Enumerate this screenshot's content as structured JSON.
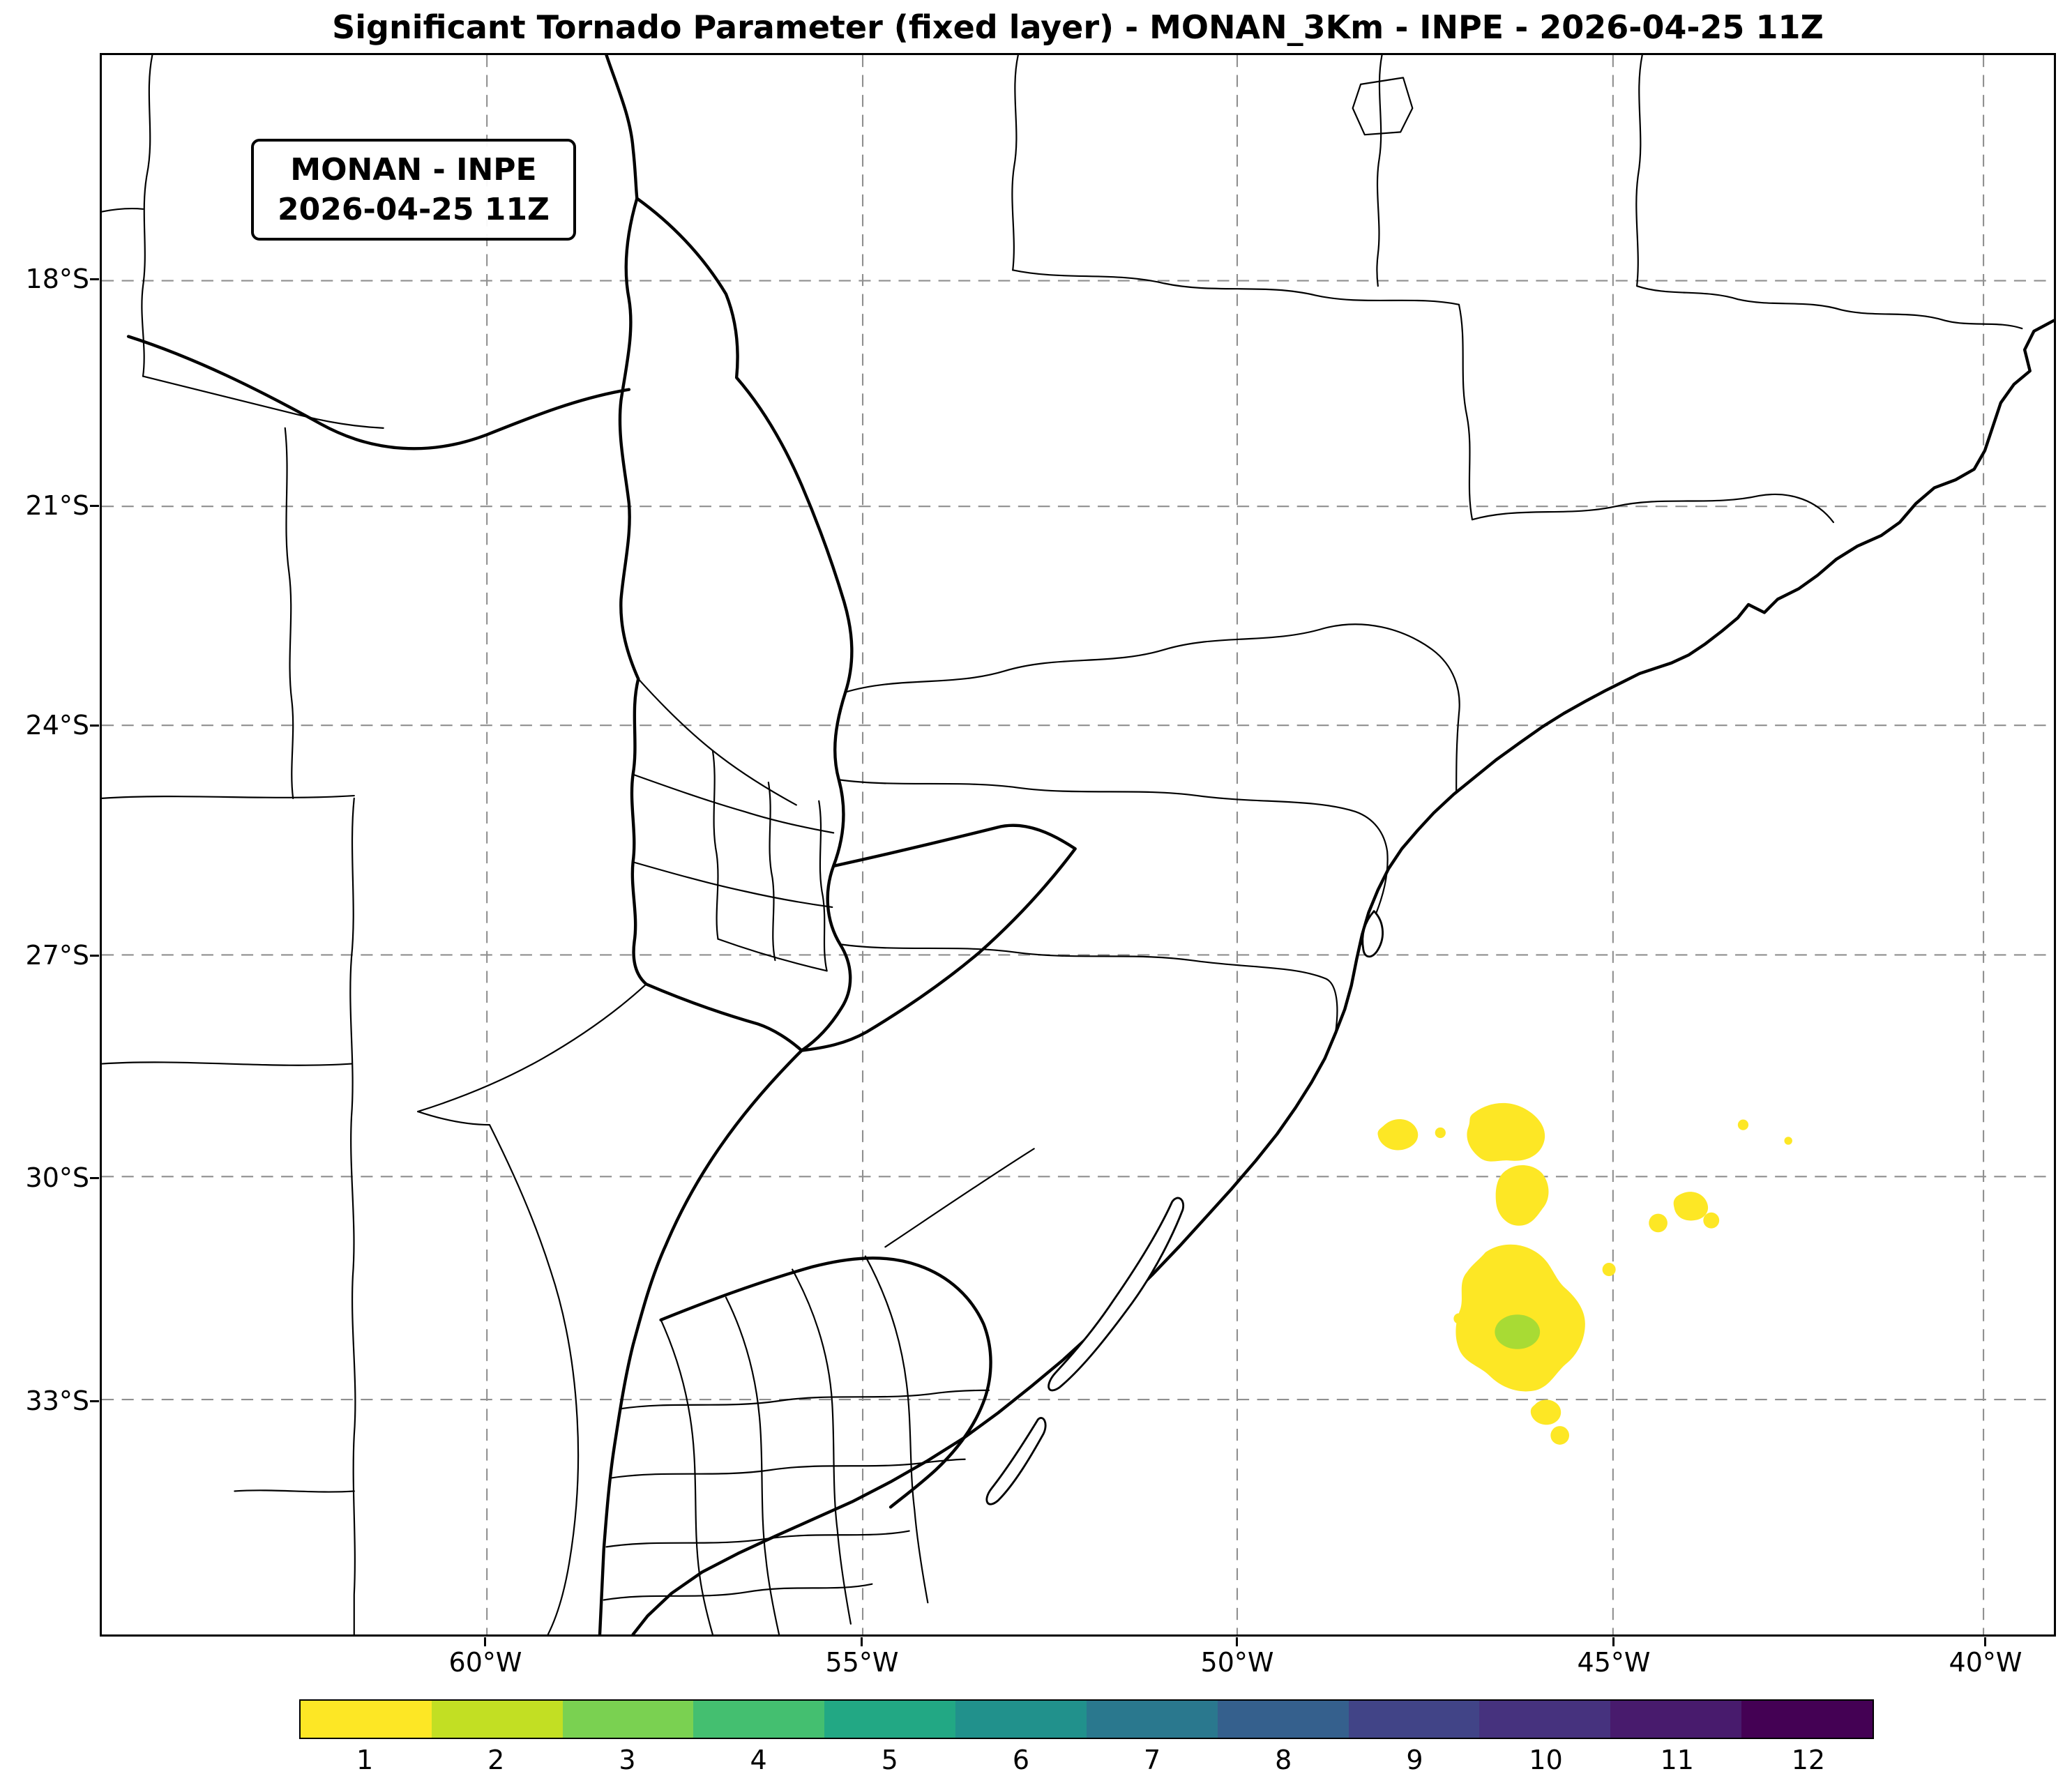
{
  "title": "Significant Tornado Parameter (fixed layer) - MONAN_3Km - INPE - 2026-04-25 11Z",
  "info_box": {
    "model": "MONAN - INPE",
    "datetime": "2026-04-25 11Z"
  },
  "map": {
    "lat_labels": [
      "18°S",
      "21°S",
      "24°S",
      "27°S",
      "30°S",
      "33°S"
    ],
    "lon_labels": [
      "60°W",
      "55°W",
      "50°W",
      "45°W",
      "40°W"
    ]
  },
  "colorbar": {
    "ticks": [
      "1",
      "2",
      "3",
      "4",
      "5",
      "6",
      "7",
      "8",
      "9",
      "10",
      "11",
      "12"
    ],
    "colors": [
      "#fde725",
      "#c2df23",
      "#7ad151",
      "#44bf70",
      "#22a884",
      "#21918c",
      "#2a788e",
      "#35608d",
      "#414487",
      "#46327e",
      "#481b6d",
      "#440154"
    ]
  },
  "colors": {
    "overlay_yellow": "#fde725",
    "overlay_green": "#a8db34",
    "gridline": "#8f8f8f",
    "border": "#000000"
  },
  "chart_data": {
    "type": "heatmap",
    "title": "Significant Tornado Parameter (fixed layer) - MONAN_3Km - INPE - 2026-04-25 11Z",
    "parameter": "Significant Tornado Parameter (fixed layer)",
    "model": "MONAN_3Km",
    "institution": "INPE",
    "valid_time": "2026-04-25 11Z",
    "projection_extent": {
      "lon": [
        -65.1,
        -39.1
      ],
      "lat": [
        -36.2,
        -15.0
      ]
    },
    "grid": "dashed graticule every 3° latitude / 5° longitude",
    "lat_gridlines_deg_S": [
      18,
      21,
      24,
      27,
      30,
      33
    ],
    "lon_gridlines_deg_W": [
      60,
      55,
      50,
      45,
      40
    ],
    "colormap": "viridis reversed (yellow = low, dark purple = high)",
    "colorbar_levels": [
      1,
      2,
      3,
      4,
      5,
      6,
      7,
      8,
      9,
      10,
      11,
      12
    ],
    "legend_position": "horizontal colorbar, bottom",
    "data_regions": [
      {
        "description": "Filled STP contours ≈ 1 (yellow) with small core ≈ 2 (yellow-green) over the Atlantic Ocean offshore of Rio Grande do Sul",
        "lon_range": [
          -47.5,
          -44.5
        ],
        "lat_range": [
          -32.5,
          -29.3
        ],
        "value_range": [
          1,
          2
        ]
      },
      {
        "description": "Isolated small STP ≈ 1 patches further east offshore",
        "lon_range": [
          -44.5,
          -43.0
        ],
        "lat_range": [
          -31.3,
          -29.5
        ],
        "value_range": [
          1,
          1
        ]
      }
    ]
  }
}
